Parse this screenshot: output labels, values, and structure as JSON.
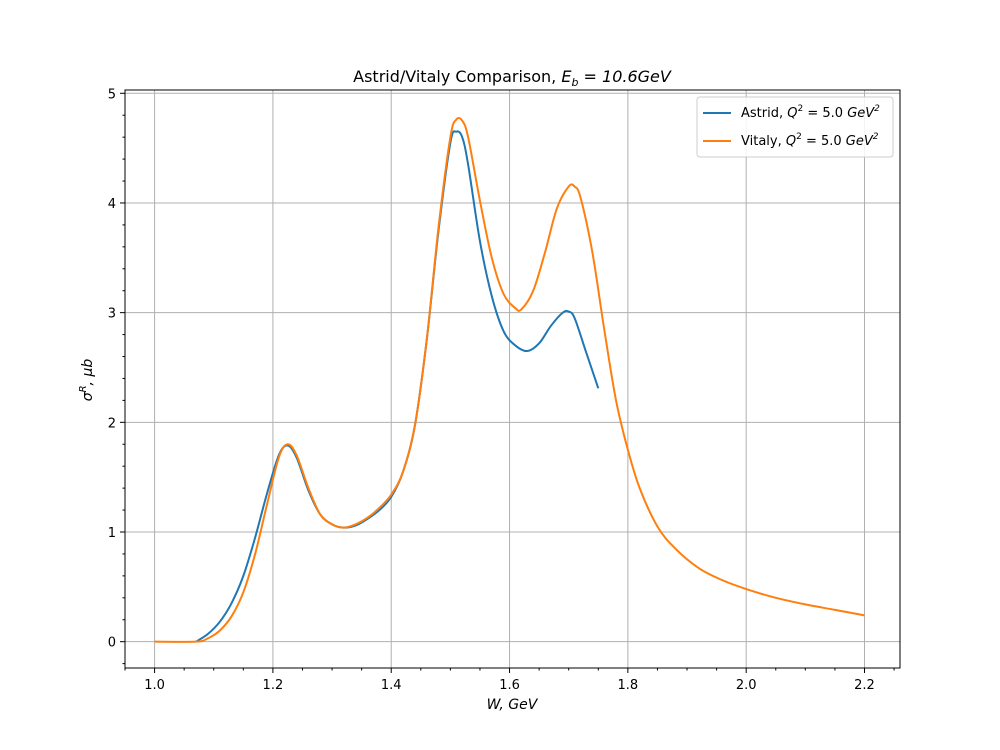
{
  "chart_data": {
    "type": "line",
    "title": "Astrid/Vitaly Comparison, E_b = 10.6GeV",
    "title_parts": {
      "prefix": "Astrid/Vitaly Comparison, ",
      "sym": "E",
      "sub": "b",
      "suffix": " = 10.6GeV"
    },
    "xlabel": "W, GeV",
    "ylabel": "σ^R, μb",
    "ylabel_parts": {
      "sym": "σ",
      "sup": "R",
      "suffix": ", μb"
    },
    "xlim": [
      0.95,
      2.26
    ],
    "ylim": [
      -0.24,
      5.03
    ],
    "x_ticks": [
      1.0,
      1.2,
      1.4,
      1.6,
      1.8,
      2.0,
      2.2
    ],
    "x_tick_labels": [
      "1.0",
      "1.2",
      "1.4",
      "1.6",
      "1.8",
      "2.0",
      "2.2"
    ],
    "y_ticks": [
      0,
      1,
      2,
      3,
      4,
      5
    ],
    "y_tick_labels": [
      "0",
      "1",
      "2",
      "3",
      "4",
      "5"
    ],
    "grid": true,
    "legend_position": "top-right",
    "series": [
      {
        "name": "Astrid, Q^2 = 5.0 GeV^2",
        "legend_prefix": "Astrid, ",
        "color": "#1f77b4",
        "x": [
          1.07,
          1.09,
          1.11,
          1.13,
          1.15,
          1.17,
          1.19,
          1.21,
          1.225,
          1.24,
          1.26,
          1.28,
          1.3,
          1.32,
          1.34,
          1.36,
          1.38,
          1.4,
          1.42,
          1.44,
          1.46,
          1.48,
          1.5,
          1.51,
          1.52,
          1.53,
          1.55,
          1.57,
          1.59,
          1.61,
          1.63,
          1.65,
          1.67,
          1.69,
          1.7,
          1.71,
          1.73,
          1.75
        ],
        "y": [
          0.0,
          0.07,
          0.18,
          0.35,
          0.6,
          0.95,
          1.35,
          1.7,
          1.79,
          1.68,
          1.38,
          1.16,
          1.07,
          1.04,
          1.06,
          1.12,
          1.2,
          1.32,
          1.55,
          1.97,
          2.75,
          3.75,
          4.55,
          4.65,
          4.6,
          4.35,
          3.65,
          3.15,
          2.83,
          2.7,
          2.65,
          2.72,
          2.88,
          3.0,
          3.01,
          2.95,
          2.63,
          2.31
        ]
      },
      {
        "name": "Vitaly, Q^2 = 5.0 GeV^2",
        "legend_prefix": "Vitaly, ",
        "color": "#ff7f0e",
        "x": [
          1.0,
          1.07,
          1.09,
          1.11,
          1.13,
          1.15,
          1.17,
          1.19,
          1.21,
          1.225,
          1.24,
          1.26,
          1.28,
          1.3,
          1.32,
          1.34,
          1.36,
          1.38,
          1.4,
          1.42,
          1.44,
          1.46,
          1.48,
          1.5,
          1.51,
          1.52,
          1.53,
          1.55,
          1.57,
          1.59,
          1.61,
          1.62,
          1.64,
          1.66,
          1.68,
          1.7,
          1.71,
          1.72,
          1.74,
          1.76,
          1.78,
          1.8,
          1.82,
          1.85,
          1.88,
          1.92,
          1.96,
          2.0,
          2.05,
          2.1,
          2.15,
          2.2
        ],
        "y": [
          0.0,
          0.0,
          0.03,
          0.1,
          0.23,
          0.45,
          0.8,
          1.25,
          1.68,
          1.8,
          1.7,
          1.4,
          1.16,
          1.07,
          1.04,
          1.07,
          1.13,
          1.22,
          1.34,
          1.55,
          1.97,
          2.75,
          3.78,
          4.6,
          4.76,
          4.75,
          4.6,
          4.02,
          3.5,
          3.17,
          3.04,
          3.03,
          3.2,
          3.55,
          3.95,
          4.15,
          4.15,
          4.05,
          3.55,
          2.85,
          2.2,
          1.75,
          1.4,
          1.05,
          0.85,
          0.67,
          0.56,
          0.48,
          0.4,
          0.34,
          0.29,
          0.24
        ]
      }
    ],
    "legend_sym": "Q",
    "legend_sup": "2",
    "legend_mid": " = 5.0 ",
    "legend_unit": "GeV",
    "legend_unit_sup": "2"
  }
}
